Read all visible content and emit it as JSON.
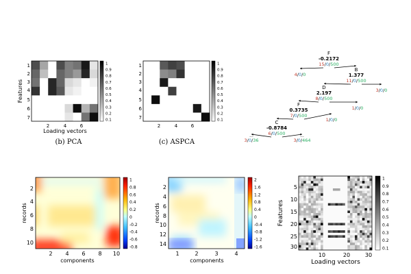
{
  "figure": {
    "panel_b": {
      "caption": "(b) PCA",
      "ylabel": "Features",
      "xlabel": "Loading vectors",
      "yticks": [
        "1",
        "2",
        "3",
        "4",
        "5",
        "6",
        "7"
      ],
      "xticks": [
        "2",
        "4",
        "6"
      ],
      "cbar_ticks": [
        "1",
        "0.9",
        "0.8",
        "0.7",
        "0.6",
        "0.5",
        "0.4",
        "0.3",
        "0.2",
        "0.1"
      ],
      "grid": [
        [
          0.7,
          0.35,
          0.0,
          0.7,
          0.5,
          0.55,
          0.9,
          0.1
        ],
        [
          0.6,
          0.25,
          0.0,
          0.6,
          0.5,
          0.4,
          0.85,
          0.15
        ],
        [
          0.55,
          0.0,
          0.85,
          0.6,
          0.15,
          0.1,
          0.0,
          0.05
        ],
        [
          0.8,
          0.0,
          0.85,
          0.65,
          0.1,
          0.05,
          0.0,
          0.0
        ],
        [
          0.0,
          0.0,
          0.0,
          0.0,
          0.0,
          0.0,
          0.0,
          0.0
        ],
        [
          0.0,
          0.0,
          0.0,
          0.0,
          0.15,
          0.95,
          0.3,
          0.55
        ],
        [
          0.0,
          0.0,
          0.0,
          0.0,
          0.1,
          0.0,
          0.55,
          0.95
        ]
      ]
    },
    "panel_c": {
      "caption": "(c) ASPCA",
      "xticks": [
        "2",
        "4",
        "6"
      ],
      "yticks": [
        "1",
        "2",
        "3",
        "4",
        "5",
        "6",
        "7"
      ],
      "cbar_ticks": [
        "1",
        "0.9",
        "0.8",
        "0.7",
        "0.6",
        "0.5",
        "0.4",
        "0.3",
        "0.2",
        "0.1"
      ],
      "grid": [
        [
          0.0,
          0.0,
          0.65,
          0.75,
          0.7,
          0.0,
          0.0,
          0.0
        ],
        [
          0.0,
          0.0,
          0.45,
          0.5,
          0.8,
          0.0,
          0.0,
          0.0
        ],
        [
          0.0,
          0.0,
          0.9,
          0.0,
          0.0,
          0.0,
          0.0,
          0.0
        ],
        [
          0.0,
          0.0,
          0.0,
          0.75,
          0.0,
          0.0,
          0.0,
          0.0
        ],
        [
          0.0,
          0.95,
          0.0,
          0.0,
          0.0,
          0.0,
          0.0,
          0.0
        ],
        [
          0.0,
          0.0,
          0.0,
          0.0,
          0.0,
          0.0,
          0.9,
          0.0
        ],
        [
          0.0,
          0.0,
          0.0,
          0.0,
          0.0,
          0.0,
          0.0,
          0.95
        ]
      ]
    },
    "tree": {
      "nodes": [
        {
          "id": "F1",
          "name": "F",
          "value": "-0.2172",
          "counts": [
            "15",
            "0",
            "500"
          ]
        },
        {
          "id": "B",
          "name": "B",
          "value": "1.377",
          "counts": [
            "11",
            "0",
            "500"
          ]
        },
        {
          "id": "D",
          "name": "D",
          "value": "2.197",
          "counts": [
            "8",
            "0",
            "500"
          ]
        },
        {
          "id": "F2",
          "name": "F",
          "value": "0.3735",
          "counts": [
            "7",
            "0",
            "500"
          ]
        },
        {
          "id": "C",
          "name": "C",
          "value": "-0.8784",
          "counts": [
            "6",
            "0",
            "500"
          ]
        }
      ],
      "leaves": [
        {
          "id": "L1",
          "counts": [
            "4",
            "0",
            "0"
          ]
        },
        {
          "id": "L2",
          "counts": [
            "3",
            "0",
            "0"
          ]
        },
        {
          "id": "L3",
          "counts": [
            "1",
            "0",
            "0"
          ]
        },
        {
          "id": "L4",
          "counts": [
            "1",
            "0",
            "0"
          ]
        },
        {
          "id": "L5",
          "prefix": "...",
          "counts": [
            "3",
            "0",
            "36"
          ]
        },
        {
          "id": "L6",
          "prefix": "...",
          "counts": [
            "3",
            "0",
            "464"
          ]
        }
      ],
      "colors": {
        "first": "#c0392b",
        "second": "#2e86c1",
        "third": "#27ae60"
      }
    },
    "panel_heat1": {
      "ylabel": "records",
      "xlabel": "components",
      "yticks": [
        "2",
        "4",
        "6",
        "8",
        "10"
      ],
      "xticks": [
        "2",
        "4",
        "6",
        "8",
        "10"
      ],
      "cbar_ticks": [
        "1",
        "0.8",
        "0.6",
        "0.4",
        "0.2",
        "0",
        "-0.2",
        "-0.4",
        "-0.6",
        "-0.8"
      ]
    },
    "panel_heat2": {
      "ylabel": "records",
      "xlabel": "components",
      "yticks": [
        "2",
        "4",
        "6",
        "8",
        "10",
        "12",
        "14"
      ],
      "xticks": [
        "1",
        "2",
        "3",
        "4"
      ],
      "cbar_ticks": [
        "2",
        "1.6",
        "1.2",
        "0.8",
        "0.4",
        "0",
        "-0.4",
        "-0.8",
        "-1.2",
        "-1.6"
      ]
    },
    "panel_gray": {
      "ylabel": "Features",
      "xlabel": "Loading vectors",
      "yticks": [
        "5",
        "10",
        "15",
        "20",
        "25",
        "30"
      ],
      "xticks": [
        "10",
        "20",
        "30"
      ],
      "cbar_ticks": [
        "1",
        "0.9",
        "0.8",
        "0.7",
        "0.6",
        "0.5",
        "0.4",
        "0.3",
        "0.2",
        "0.1"
      ]
    }
  }
}
